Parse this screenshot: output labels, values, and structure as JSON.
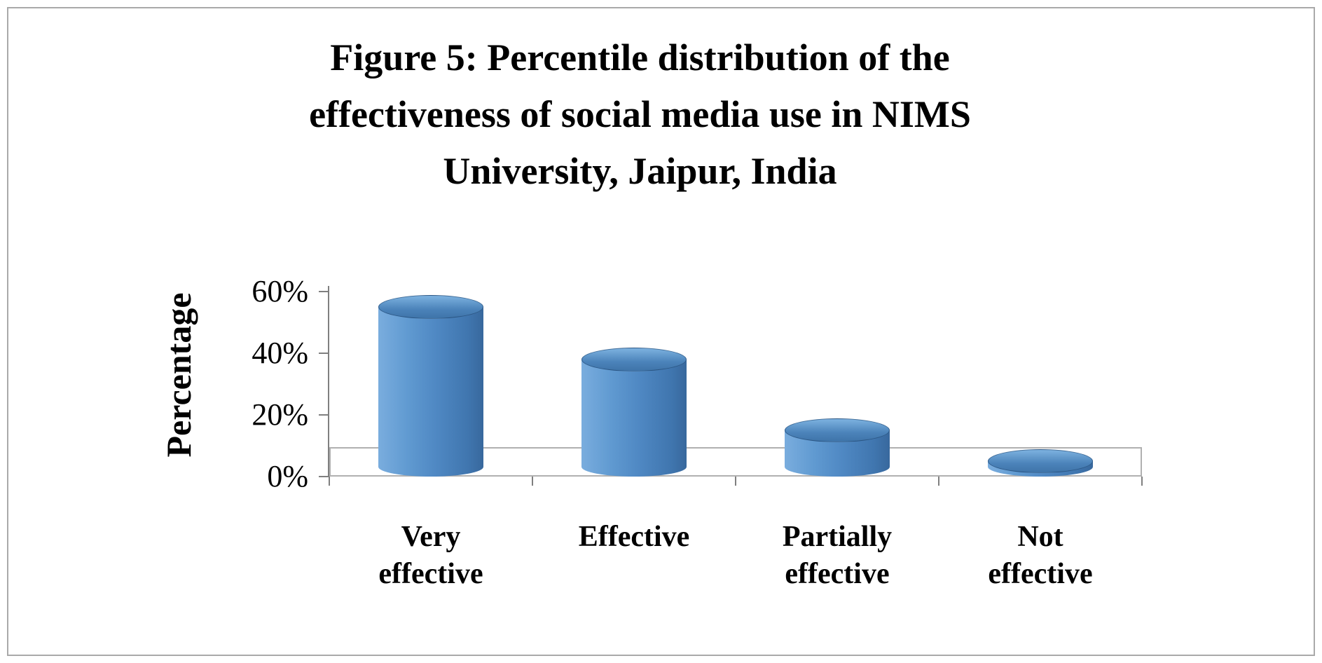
{
  "title": {
    "lines": [
      "Figure 5: Percentile distribution of the",
      "effectiveness of social media use in NIMS",
      "University, Jaipur, India"
    ]
  },
  "chart_data": {
    "type": "bar",
    "subtype": "3d-cylinder",
    "title": "Figure 5: Percentile distribution of the effectiveness of social media use in NIMS University, Jaipur, India",
    "categories": [
      "Very\neffective",
      "Effective",
      "Partially\neffective",
      "Not\neffective"
    ],
    "values": [
      55,
      38,
      15,
      5
    ],
    "xlabel": "",
    "ylabel": "Percentage",
    "ylim": [
      0,
      60
    ],
    "yticks": [
      0,
      20,
      40,
      60
    ],
    "ytick_labels": [
      "0%",
      "20%",
      "40%",
      "60%"
    ],
    "grid": false,
    "legend": false,
    "bar_color": "#4f88c3",
    "bar_color_light": "#7aadde",
    "bar_color_dark": "#38689d",
    "axis_color": "#7f7f7f",
    "frame_border_color": "#a9a9a9",
    "floor_band": {
      "top_value": 9.5,
      "fill": "#ffffff",
      "border": "#b0b0b0"
    }
  }
}
